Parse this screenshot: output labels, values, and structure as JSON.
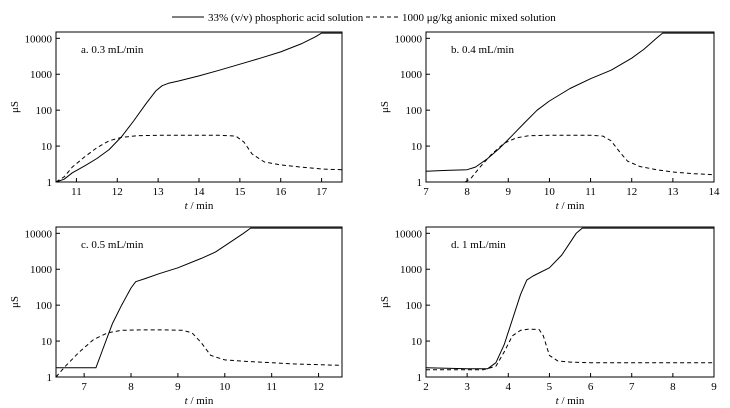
{
  "legend": {
    "solid_label": "33% (v/v) phosphoric acid solution",
    "dashed_label": "1000 μg/kg anionic mixed solution"
  },
  "chart_data": [
    {
      "type": "line",
      "panel_label": "a. 0.3 mL/min",
      "xlabel_var": "t",
      "xlabel_unit": " / min",
      "ylabel": "μS",
      "yscale": "log",
      "xlim": [
        10.5,
        17.5
      ],
      "ylim": [
        1,
        15000
      ],
      "xticks": [
        11,
        12,
        13,
        14,
        15,
        16,
        17
      ],
      "yticks": [
        1,
        10,
        100,
        1000,
        10000
      ],
      "series": [
        {
          "name": "33% (v/v) phosphoric acid solution",
          "style": "solid",
          "x": [
            10.5,
            10.7,
            10.9,
            11.2,
            11.5,
            11.8,
            12.1,
            12.4,
            12.7,
            12.95,
            13.1,
            13.25,
            13.5,
            14.0,
            14.5,
            15.0,
            15.5,
            16.0,
            16.5,
            16.85,
            17.0,
            17.5
          ],
          "y": [
            1.0,
            1.2,
            1.8,
            2.8,
            4.5,
            8.0,
            18,
            50,
            150,
            350,
            480,
            560,
            650,
            900,
            1300,
            1900,
            2800,
            4200,
            7000,
            11000,
            14000,
            14000
          ]
        },
        {
          "name": "1000 μg/kg anionic mixed solution",
          "style": "dashed",
          "x": [
            10.5,
            10.7,
            10.9,
            11.2,
            11.5,
            11.8,
            12.1,
            12.5,
            13.0,
            13.5,
            14.0,
            14.5,
            14.9,
            15.1,
            15.3,
            15.6,
            16.0,
            16.5,
            17.0,
            17.5
          ],
          "y": [
            1.0,
            1.4,
            2.6,
            5.0,
            9.0,
            14,
            17.5,
            19.5,
            20,
            20,
            20,
            20,
            19,
            13,
            6.0,
            3.6,
            3.0,
            2.6,
            2.3,
            2.2
          ]
        }
      ]
    },
    {
      "type": "line",
      "panel_label": "b. 0.4 mL/min",
      "xlabel_var": "t",
      "xlabel_unit": " / min",
      "ylabel": "μS",
      "yscale": "log",
      "xlim": [
        7,
        14
      ],
      "ylim": [
        1,
        15000
      ],
      "xticks": [
        7,
        8,
        9,
        10,
        11,
        12,
        13,
        14
      ],
      "yticks": [
        1,
        10,
        100,
        1000,
        10000
      ],
      "series": [
        {
          "name": "33% (v/v) phosphoric acid solution",
          "style": "solid",
          "x": [
            7.0,
            7.5,
            8.0,
            8.2,
            8.5,
            8.8,
            9.1,
            9.4,
            9.7,
            10.0,
            10.5,
            11.0,
            11.5,
            12.0,
            12.3,
            12.6,
            12.75,
            13.0,
            14.0
          ],
          "y": [
            2.0,
            2.1,
            2.2,
            2.6,
            4.5,
            9,
            20,
            45,
            100,
            180,
            400,
            750,
            1300,
            2800,
            5000,
            10000,
            14000,
            14000,
            14000
          ]
        },
        {
          "name": "1000 μg/kg anionic mixed solution",
          "style": "dashed",
          "x": [
            7.95,
            8.1,
            8.3,
            8.6,
            8.9,
            9.2,
            9.5,
            10.0,
            10.5,
            11.0,
            11.3,
            11.5,
            11.7,
            11.9,
            12.2,
            12.6,
            13.0,
            13.5,
            14.0
          ],
          "y": [
            1.0,
            1.3,
            2.5,
            6.0,
            12,
            17,
            19.5,
            20,
            20,
            20,
            19,
            14,
            7.0,
            3.8,
            2.7,
            2.2,
            1.9,
            1.7,
            1.6
          ]
        }
      ]
    },
    {
      "type": "line",
      "panel_label": "c. 0.5 mL/min",
      "xlabel_var": "t",
      "xlabel_unit": " / min",
      "ylabel": "μS",
      "yscale": "log",
      "xlim": [
        6.4,
        12.5
      ],
      "ylim": [
        1,
        15000
      ],
      "xticks": [
        7,
        8,
        9,
        10,
        11,
        12
      ],
      "yticks": [
        1,
        10,
        100,
        1000,
        10000
      ],
      "series": [
        {
          "name": "33% (v/v) phosphoric acid solution",
          "style": "solid",
          "x": [
            6.4,
            7.0,
            7.25,
            7.4,
            7.6,
            7.8,
            8.0,
            8.1,
            8.3,
            8.6,
            9.0,
            9.5,
            9.8,
            10.1,
            10.4,
            10.55,
            12.5
          ],
          "y": [
            1.8,
            1.8,
            1.8,
            6,
            30,
            100,
            300,
            450,
            550,
            750,
            1100,
            2000,
            3000,
            5500,
            10000,
            14000,
            14000
          ]
        },
        {
          "name": "1000 μg/kg anionic mixed solution",
          "style": "dashed",
          "x": [
            6.4,
            6.6,
            6.9,
            7.2,
            7.5,
            7.8,
            8.2,
            8.7,
            9.1,
            9.3,
            9.5,
            9.7,
            10.0,
            10.5,
            11.0,
            11.5,
            12.0,
            12.5
          ],
          "y": [
            1.0,
            2.0,
            5.0,
            11,
            17,
            20,
            20.5,
            20.5,
            20,
            17,
            9.0,
            4.0,
            3.0,
            2.7,
            2.5,
            2.3,
            2.2,
            2.1
          ]
        }
      ]
    },
    {
      "type": "line",
      "panel_label": "d. 1 mL/min",
      "xlabel_var": "t",
      "xlabel_unit": " / min",
      "ylabel": "μS",
      "yscale": "log",
      "xlim": [
        2,
        9
      ],
      "ylim": [
        1,
        15000
      ],
      "xticks": [
        2,
        3,
        4,
        5,
        6,
        7,
        8,
        9
      ],
      "yticks": [
        1,
        10,
        100,
        1000,
        10000
      ],
      "series": [
        {
          "name": "33% (v/v) phosphoric acid solution",
          "style": "solid",
          "x": [
            2.0,
            3.0,
            3.5,
            3.7,
            3.9,
            4.1,
            4.3,
            4.45,
            4.6,
            5.0,
            5.3,
            5.5,
            5.65,
            5.8,
            9.0
          ],
          "y": [
            1.8,
            1.7,
            1.7,
            2.5,
            8,
            40,
            200,
            500,
            650,
            1100,
            2500,
            5500,
            10000,
            14000,
            14000
          ]
        },
        {
          "name": "1000 μg/kg anionic mixed solution",
          "style": "dashed",
          "x": [
            2.0,
            3.0,
            3.4,
            3.7,
            3.9,
            4.1,
            4.3,
            4.5,
            4.75,
            4.85,
            5.0,
            5.2,
            5.5,
            6.0,
            7.0,
            8.0,
            9.0
          ],
          "y": [
            1.6,
            1.6,
            1.6,
            2.0,
            5.0,
            14,
            20,
            21.5,
            21,
            14,
            4.0,
            2.8,
            2.6,
            2.5,
            2.5,
            2.5,
            2.5
          ]
        }
      ]
    }
  ]
}
